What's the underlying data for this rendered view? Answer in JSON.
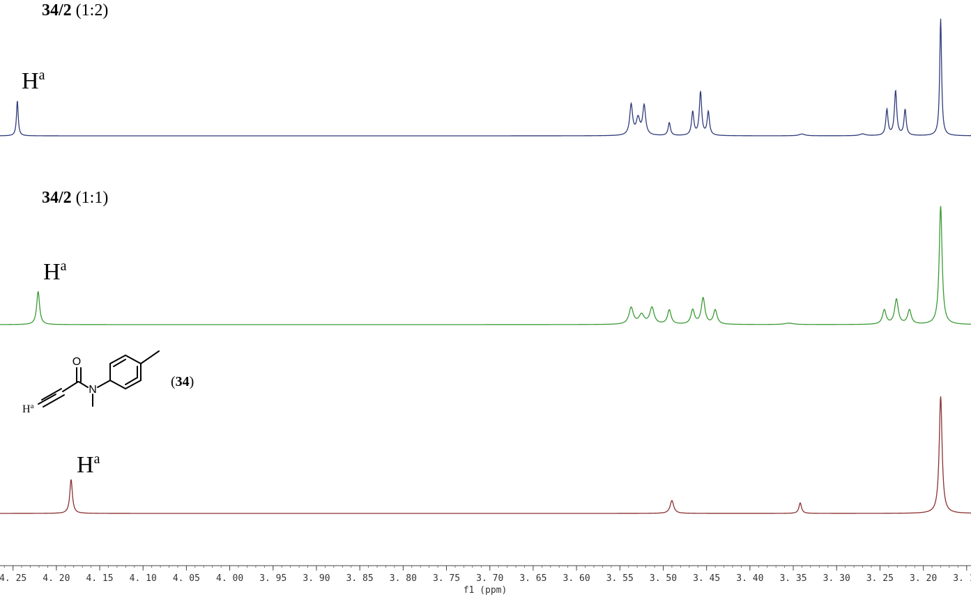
{
  "chart_data": {
    "type": "line",
    "xlabel": "f1 (ppm)",
    "x_reversed": true,
    "xlim": [
      4.265,
      3.145
    ],
    "ticks": [
      4.25,
      4.2,
      4.15,
      4.1,
      4.05,
      4.0,
      3.95,
      3.9,
      3.85,
      3.8,
      3.75,
      3.7,
      3.65,
      3.6,
      3.55,
      3.5,
      3.45,
      3.4,
      3.35,
      3.3,
      3.25,
      3.2,
      3.15
    ],
    "tick_labels": [
      "4. 25",
      "4. 20",
      "4. 15",
      "4. 10",
      "4. 05",
      "4. 00",
      "3. 95",
      "3. 90",
      "3. 85",
      "3. 80",
      "3. 75",
      "3. 70",
      "3. 65",
      "3. 60",
      "3. 55",
      "3. 50",
      "3. 45",
      "3. 40",
      "3. 35",
      "3. 30",
      "3. 25",
      "3. 20",
      "3. 15"
    ],
    "series": [
      {
        "label_bold": "34/2",
        "label_rest": " (1:2)",
        "color": "#2f3a7a",
        "peak_label": "H",
        "peak_label_sup": "a",
        "peaks": [
          {
            "ppm": 4.245,
            "h": 0.3,
            "w": 0.0012
          },
          {
            "ppm": 3.537,
            "h": 0.26,
            "w": 0.002
          },
          {
            "ppm": 3.529,
            "h": 0.14,
            "w": 0.0025
          },
          {
            "ppm": 3.522,
            "h": 0.25,
            "w": 0.002
          },
          {
            "ppm": 3.493,
            "h": 0.11,
            "w": 0.0016
          },
          {
            "ppm": 3.466,
            "h": 0.2,
            "w": 0.0016
          },
          {
            "ppm": 3.457,
            "h": 0.37,
            "w": 0.0016
          },
          {
            "ppm": 3.448,
            "h": 0.2,
            "w": 0.0016
          },
          {
            "ppm": 3.34,
            "h": 0.015,
            "w": 0.004
          },
          {
            "ppm": 3.27,
            "h": 0.015,
            "w": 0.004
          },
          {
            "ppm": 3.242,
            "h": 0.22,
            "w": 0.0015
          },
          {
            "ppm": 3.232,
            "h": 0.38,
            "w": 0.0016
          },
          {
            "ppm": 3.221,
            "h": 0.22,
            "w": 0.0015
          },
          {
            "ppm": 3.18,
            "h": 1.0,
            "w": 0.0013
          }
        ]
      },
      {
        "label_bold": "34/2",
        "label_rest": " (1:1)",
        "color": "#3a9a35",
        "peak_label": "H",
        "peak_label_sup": "a",
        "peaks": [
          {
            "ppm": 4.221,
            "h": 0.28,
            "w": 0.002
          },
          {
            "ppm": 3.537,
            "h": 0.14,
            "w": 0.003
          },
          {
            "ppm": 3.525,
            "h": 0.08,
            "w": 0.0035
          },
          {
            "ppm": 3.513,
            "h": 0.14,
            "w": 0.003
          },
          {
            "ppm": 3.493,
            "h": 0.12,
            "w": 0.0025
          },
          {
            "ppm": 3.466,
            "h": 0.12,
            "w": 0.0025
          },
          {
            "ppm": 3.454,
            "h": 0.22,
            "w": 0.0025
          },
          {
            "ppm": 3.44,
            "h": 0.12,
            "w": 0.0025
          },
          {
            "ppm": 3.355,
            "h": 0.012,
            "w": 0.006
          },
          {
            "ppm": 3.245,
            "h": 0.12,
            "w": 0.0025
          },
          {
            "ppm": 3.231,
            "h": 0.21,
            "w": 0.0025
          },
          {
            "ppm": 3.216,
            "h": 0.12,
            "w": 0.0025
          },
          {
            "ppm": 3.18,
            "h": 1.0,
            "w": 0.002
          }
        ]
      },
      {
        "color": "#8a3030",
        "peak_label": "H",
        "peak_label_sup": "a",
        "compound_number": "34",
        "peaks": [
          {
            "ppm": 4.183,
            "h": 0.29,
            "w": 0.0018
          },
          {
            "ppm": 3.49,
            "h": 0.11,
            "w": 0.0025
          },
          {
            "ppm": 3.342,
            "h": 0.09,
            "w": 0.0018
          },
          {
            "ppm": 3.18,
            "h": 1.0,
            "w": 0.002
          }
        ]
      }
    ],
    "molecule": {
      "atom_O": "O",
      "atom_N": "N",
      "atom_H": "H",
      "atom_H_sup": "a"
    }
  }
}
